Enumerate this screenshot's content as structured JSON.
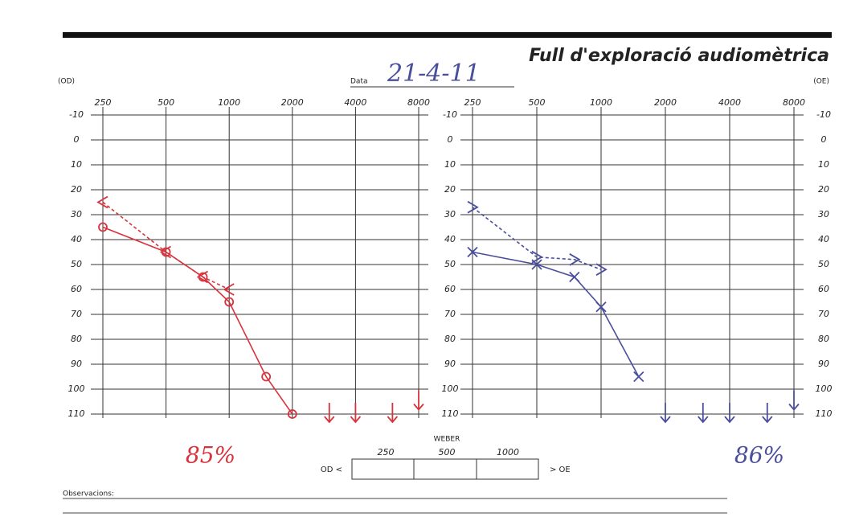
{
  "header": {
    "title": "Full d'exploració audiomètrica",
    "date_label": "Data",
    "date": "21-4-11"
  },
  "chart_data": [
    {
      "type": "line",
      "ear_label": "(OD)",
      "x_scale": "log",
      "y_reversed": true,
      "grid": true,
      "xlim": [
        250,
        8000
      ],
      "xticks": [
        250,
        500,
        1000,
        2000,
        4000,
        8000
      ],
      "ylim": [
        -10,
        110
      ],
      "yticks": [
        -10,
        0,
        10,
        20,
        30,
        40,
        50,
        60,
        70,
        80,
        90,
        100,
        110
      ],
      "series": [
        {
          "color": "#d8333c",
          "marker": "circle",
          "line": "solid",
          "x": [
            250,
            500,
            750,
            1000,
            1500,
            2000
          ],
          "values": [
            35,
            45,
            55,
            65,
            95,
            110
          ]
        },
        {
          "color": "#d8333c",
          "marker": "left",
          "line": "dashed",
          "x": [
            250,
            500,
            750,
            1000
          ],
          "values": [
            25,
            45,
            55,
            60
          ]
        },
        {
          "color": "#d8333c",
          "marker": "arrow",
          "line": "none",
          "x": [
            3000,
            4000,
            6000,
            8000
          ],
          "values": [
            110,
            110,
            110,
            105
          ]
        }
      ],
      "speech_score": "85%"
    },
    {
      "type": "line",
      "ear_label": "(OE)",
      "x_scale": "log",
      "y_reversed": true,
      "grid": true,
      "xlim": [
        250,
        8000
      ],
      "xticks": [
        250,
        500,
        1000,
        2000,
        4000,
        8000
      ],
      "ylim": [
        -10,
        110
      ],
      "yticks": [
        -10,
        0,
        10,
        20,
        30,
        40,
        50,
        60,
        70,
        80,
        90,
        100,
        110
      ],
      "series": [
        {
          "color": "#4a4f9c",
          "marker": "cross",
          "line": "solid",
          "x": [
            250,
            500,
            750,
            1000,
            1500
          ],
          "values": [
            45,
            50,
            55,
            67,
            95
          ]
        },
        {
          "color": "#4a4f9c",
          "marker": "right",
          "line": "dashed",
          "x": [
            250,
            500,
            750,
            1000
          ],
          "values": [
            27,
            47,
            48,
            52
          ]
        },
        {
          "color": "#4a4f9c",
          "marker": "arrow",
          "line": "none",
          "x": [
            2000,
            3000,
            4000,
            6000,
            8000
          ],
          "values": [
            110,
            110,
            110,
            110,
            105
          ]
        }
      ],
      "speech_score": "86%"
    }
  ],
  "weber": {
    "title": "WEBER",
    "frequencies": [
      "250",
      "500",
      "1000"
    ],
    "left": "OD <",
    "right": "> OE"
  },
  "footer": {
    "observations": "Observacions:"
  }
}
